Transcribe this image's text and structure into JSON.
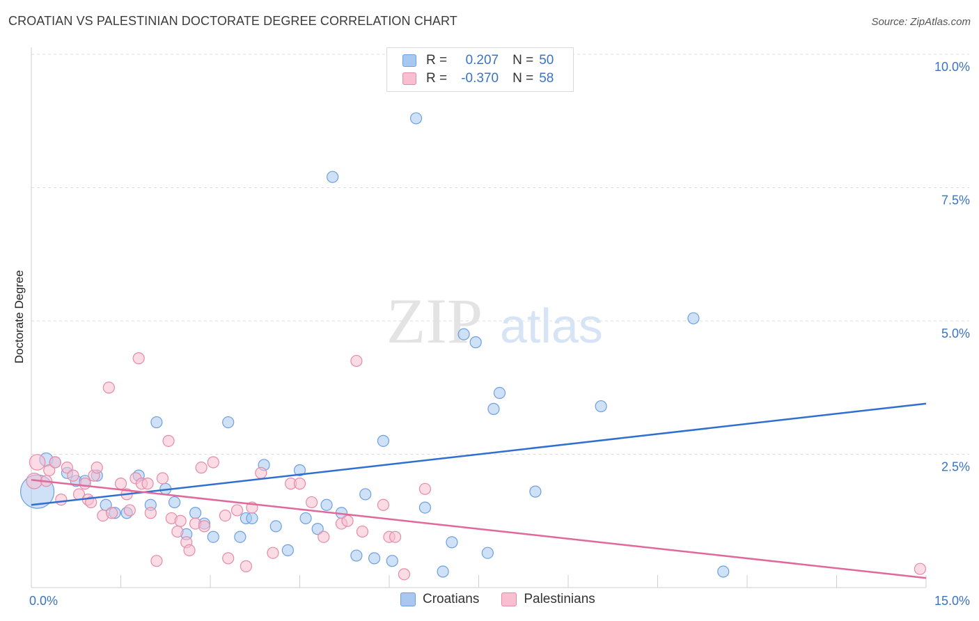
{
  "title": "CROATIAN VS PALESTINIAN DOCTORATE DEGREE CORRELATION CHART",
  "source": "Source: ZipAtlas.com",
  "watermark": {
    "zip": "ZIP",
    "atlas": "atlas"
  },
  "legend": {
    "rows": [
      {
        "r_label": "R =",
        "r_value": "0.207",
        "n_label": "N =",
        "n_value": "50",
        "color": "#a8c8f0",
        "border": "#6d9fe0"
      },
      {
        "r_label": "R =",
        "r_value": "-0.370",
        "n_label": "N =",
        "n_value": "58",
        "color": "#f7bfd0",
        "border": "#e68aa8"
      }
    ]
  },
  "bottom_legend": [
    {
      "label": "Croatians",
      "color": "#a8c8f0",
      "border": "#6d9fe0"
    },
    {
      "label": "Palestinians",
      "color": "#f7bfd0",
      "border": "#e68aa8"
    }
  ],
  "chart_data": {
    "type": "scatter",
    "title": "CROATIAN VS PALESTINIAN DOCTORATE DEGREE CORRELATION CHART",
    "xlabel": "",
    "ylabel": "Doctorate Degree",
    "xlim": [
      0,
      15
    ],
    "ylim": [
      0,
      10
    ],
    "x_tick_labels": [
      {
        "value": 0,
        "label": "0.0%"
      },
      {
        "value": 15,
        "label": "15.0%"
      }
    ],
    "y_tick_labels": [
      {
        "value": 2.5,
        "label": "2.5%"
      },
      {
        "value": 5.0,
        "label": "5.0%"
      },
      {
        "value": 7.5,
        "label": "7.5%"
      },
      {
        "value": 10.0,
        "label": "10.0%"
      }
    ],
    "grid": true,
    "series": [
      {
        "name": "Croatians",
        "color": "#6d9fe0",
        "fill": "#a8c8f0",
        "trend_color": "#2f6fd0",
        "trend": {
          "x": [
            0,
            15
          ],
          "y": [
            1.55,
            3.45
          ]
        },
        "points": [
          [
            0.1,
            1.8,
            30
          ],
          [
            0.25,
            2.4,
            12
          ],
          [
            0.4,
            2.35,
            10
          ],
          [
            0.6,
            2.15,
            10
          ],
          [
            0.75,
            2.0,
            10
          ],
          [
            0.9,
            2.0,
            10
          ],
          [
            1.1,
            2.1,
            10
          ],
          [
            1.25,
            1.55,
            10
          ],
          [
            1.4,
            1.4,
            10
          ],
          [
            1.6,
            1.4,
            10
          ],
          [
            1.8,
            2.1,
            10
          ],
          [
            2.0,
            1.55,
            10
          ],
          [
            2.1,
            3.1,
            10
          ],
          [
            2.25,
            1.85,
            10
          ],
          [
            2.4,
            1.6,
            10
          ],
          [
            2.6,
            1.0,
            10
          ],
          [
            2.75,
            1.4,
            10
          ],
          [
            2.9,
            1.2,
            10
          ],
          [
            3.05,
            0.95,
            10
          ],
          [
            3.3,
            3.1,
            10
          ],
          [
            3.5,
            0.95,
            10
          ],
          [
            3.6,
            1.3,
            10
          ],
          [
            3.7,
            1.3,
            10
          ],
          [
            3.9,
            2.3,
            10
          ],
          [
            4.1,
            1.15,
            10
          ],
          [
            4.3,
            0.7,
            10
          ],
          [
            4.5,
            2.2,
            10
          ],
          [
            4.6,
            1.3,
            10
          ],
          [
            4.8,
            1.1,
            10
          ],
          [
            4.95,
            1.55,
            10
          ],
          [
            5.05,
            7.7,
            10
          ],
          [
            5.2,
            1.4,
            10
          ],
          [
            5.45,
            0.6,
            10
          ],
          [
            5.6,
            1.75,
            10
          ],
          [
            5.75,
            0.55,
            10
          ],
          [
            5.9,
            2.75,
            10
          ],
          [
            6.05,
            0.5,
            10
          ],
          [
            6.45,
            8.8,
            10
          ],
          [
            6.6,
            1.5,
            10
          ],
          [
            6.9,
            0.3,
            10
          ],
          [
            7.05,
            0.85,
            10
          ],
          [
            7.25,
            4.75,
            10
          ],
          [
            7.45,
            4.6,
            10
          ],
          [
            7.65,
            0.65,
            10
          ],
          [
            7.75,
            3.35,
            10
          ],
          [
            7.85,
            3.65,
            10
          ],
          [
            8.45,
            1.8,
            10
          ],
          [
            9.55,
            3.4,
            10
          ],
          [
            11.1,
            5.05,
            10
          ],
          [
            11.6,
            0.3,
            10
          ]
        ]
      },
      {
        "name": "Palestinians",
        "color": "#e68aa8",
        "fill": "#f7bfd0",
        "trend_color": "#e0689a",
        "trend": {
          "x": [
            0,
            15
          ],
          "y": [
            2.02,
            0.18
          ]
        },
        "points": [
          [
            0.05,
            2.0,
            14
          ],
          [
            0.1,
            2.35,
            14
          ],
          [
            0.25,
            2.0,
            10
          ],
          [
            0.3,
            2.2,
            10
          ],
          [
            0.4,
            2.35,
            10
          ],
          [
            0.5,
            1.65,
            10
          ],
          [
            0.6,
            2.25,
            10
          ],
          [
            0.7,
            2.1,
            10
          ],
          [
            0.8,
            1.75,
            10
          ],
          [
            0.9,
            1.95,
            10
          ],
          [
            0.95,
            1.65,
            10
          ],
          [
            1.0,
            1.6,
            10
          ],
          [
            1.05,
            2.1,
            10
          ],
          [
            1.1,
            2.25,
            10
          ],
          [
            1.2,
            1.35,
            10
          ],
          [
            1.3,
            3.75,
            10
          ],
          [
            1.35,
            1.4,
            10
          ],
          [
            1.5,
            1.95,
            10
          ],
          [
            1.6,
            1.75,
            10
          ],
          [
            1.65,
            1.45,
            10
          ],
          [
            1.75,
            2.05,
            10
          ],
          [
            1.8,
            4.3,
            10
          ],
          [
            1.85,
            1.95,
            10
          ],
          [
            1.95,
            1.95,
            10
          ],
          [
            2.0,
            1.4,
            10
          ],
          [
            2.1,
            0.5,
            10
          ],
          [
            2.2,
            2.05,
            10
          ],
          [
            2.3,
            2.75,
            10
          ],
          [
            2.35,
            1.3,
            10
          ],
          [
            2.45,
            1.05,
            10
          ],
          [
            2.5,
            1.25,
            10
          ],
          [
            2.6,
            0.85,
            10
          ],
          [
            2.65,
            0.7,
            10
          ],
          [
            2.75,
            1.2,
            10
          ],
          [
            2.85,
            2.25,
            10
          ],
          [
            2.9,
            1.15,
            10
          ],
          [
            3.05,
            2.35,
            10
          ],
          [
            3.25,
            1.35,
            10
          ],
          [
            3.3,
            0.55,
            10
          ],
          [
            3.45,
            1.45,
            10
          ],
          [
            3.6,
            0.4,
            10
          ],
          [
            3.7,
            1.5,
            10
          ],
          [
            3.85,
            2.15,
            10
          ],
          [
            4.05,
            0.65,
            10
          ],
          [
            4.35,
            1.95,
            10
          ],
          [
            4.5,
            1.95,
            10
          ],
          [
            4.7,
            1.6,
            10
          ],
          [
            4.9,
            0.95,
            10
          ],
          [
            5.2,
            1.2,
            10
          ],
          [
            5.3,
            1.25,
            10
          ],
          [
            5.45,
            4.25,
            10
          ],
          [
            5.55,
            1.05,
            10
          ],
          [
            5.9,
            1.55,
            10
          ],
          [
            6.0,
            0.95,
            10
          ],
          [
            6.1,
            0.95,
            10
          ],
          [
            6.25,
            0.25,
            10
          ],
          [
            6.6,
            1.85,
            10
          ],
          [
            14.9,
            0.35,
            10
          ]
        ]
      }
    ]
  }
}
